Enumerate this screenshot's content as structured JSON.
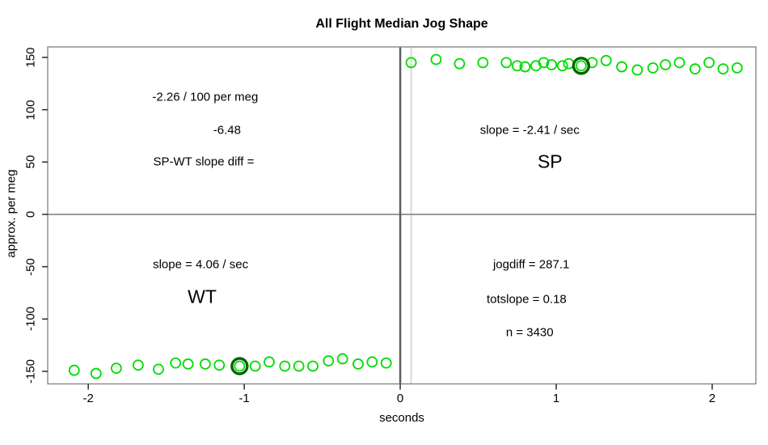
{
  "chart_data": {
    "type": "scatter",
    "title": "All Flight Median Jog Shape",
    "xlabel": "seconds",
    "ylabel": "approx. per meg",
    "xlim": [
      -2.26,
      2.28
    ],
    "ylim": [
      -162,
      160
    ],
    "x_ticks": [
      -2,
      -1,
      0,
      1,
      2
    ],
    "y_ticks": [
      -150,
      -100,
      -50,
      0,
      50,
      100,
      150
    ],
    "grid": false,
    "legend": "none",
    "series": [
      {
        "name": "WT",
        "points": [
          [
            -2.09,
            -149
          ],
          [
            -1.95,
            -152
          ],
          [
            -1.82,
            -147
          ],
          [
            -1.68,
            -144
          ],
          [
            -1.55,
            -148
          ],
          [
            -1.44,
            -142
          ],
          [
            -1.36,
            -143
          ],
          [
            -1.25,
            -143
          ],
          [
            -1.16,
            -144
          ],
          [
            -1.03,
            -145
          ],
          [
            -0.93,
            -145
          ],
          [
            -0.84,
            -141
          ],
          [
            -0.74,
            -145
          ],
          [
            -0.65,
            -145
          ],
          [
            -0.56,
            -145
          ],
          [
            -0.46,
            -140
          ],
          [
            -0.37,
            -138
          ],
          [
            -0.27,
            -143
          ],
          [
            -0.18,
            -141
          ],
          [
            -0.09,
            -142
          ]
        ]
      },
      {
        "name": "SP",
        "points": [
          [
            0.07,
            145
          ],
          [
            0.23,
            148
          ],
          [
            0.38,
            144
          ],
          [
            0.53,
            145
          ],
          [
            0.68,
            145
          ],
          [
            0.75,
            142
          ],
          [
            0.8,
            141
          ],
          [
            0.87,
            142
          ],
          [
            0.92,
            145
          ],
          [
            0.97,
            143
          ],
          [
            1.04,
            142
          ],
          [
            1.08,
            144
          ],
          [
            1.16,
            142
          ],
          [
            1.23,
            145
          ],
          [
            1.32,
            147
          ],
          [
            1.42,
            141
          ],
          [
            1.52,
            138
          ],
          [
            1.62,
            140
          ],
          [
            1.7,
            143
          ],
          [
            1.79,
            145
          ],
          [
            1.89,
            139
          ],
          [
            1.98,
            145
          ],
          [
            2.07,
            139
          ],
          [
            2.16,
            140
          ]
        ]
      }
    ],
    "highlighted_points": [
      {
        "x": -1.03,
        "y": -145
      },
      {
        "x": 1.16,
        "y": 142
      }
    ],
    "reference_lines": {
      "horizontal": [
        0
      ],
      "vertical": [
        0
      ],
      "vertical_light": [
        0.07
      ]
    },
    "annotations": [
      {
        "text": "-2.26 / 100 per meg",
        "x": -1.25,
        "y": 112,
        "size": 15
      },
      {
        "text": "-6.48",
        "x": -1.11,
        "y": 80,
        "size": 15
      },
      {
        "text": "SP-WT slope diff =",
        "x": -1.26,
        "y": 50,
        "size": 15
      },
      {
        "text": "slope = -2.41 / sec",
        "x": 0.83,
        "y": 80,
        "size": 15
      },
      {
        "text": "SP",
        "x": 0.96,
        "y": 50,
        "size": 23
      },
      {
        "text": "slope = 4.06 / sec",
        "x": -1.28,
        "y": -48,
        "size": 15
      },
      {
        "text": "WT",
        "x": -1.27,
        "y": -79,
        "size": 23
      },
      {
        "text": "jogdiff = 287.1",
        "x": 0.84,
        "y": -48,
        "size": 15
      },
      {
        "text": "totslope = 0.18",
        "x": 0.81,
        "y": -81,
        "size": 15
      },
      {
        "text": "n = 3430",
        "x": 0.83,
        "y": -113,
        "size": 15
      }
    ],
    "colors": {
      "point": "#00DD00",
      "highlight_ring": "#006400",
      "box": "#7f7f7f",
      "tick": "#2b2b2b",
      "zero_horizontal_line": "#9a9a9a",
      "zero_vertical_line": "#5f5f5f",
      "light_vertical_line": "#e0e0e0",
      "text": "#000000",
      "background": "#ffffff"
    }
  }
}
